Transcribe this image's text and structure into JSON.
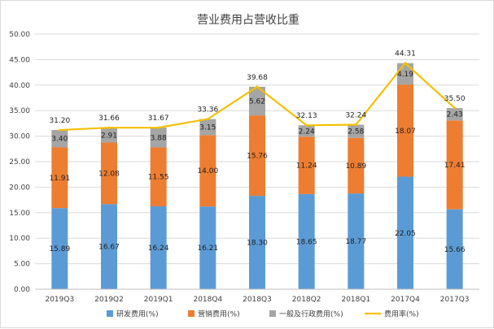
{
  "chart_data": {
    "type": "bar",
    "stacked": true,
    "title": "营业费用占营收比重",
    "categories": [
      "2019Q3",
      "2019Q2",
      "2019Q1",
      "2018Q4",
      "2018Q3",
      "2018Q2",
      "2018Q1",
      "2017Q4",
      "2017Q3"
    ],
    "series": [
      {
        "name": "研发费用(%)",
        "type": "bar",
        "color": "#5b9bd5",
        "values": [
          15.89,
          16.67,
          16.24,
          16.21,
          18.3,
          18.65,
          18.77,
          22.05,
          15.66
        ],
        "labels": [
          "15.89",
          "16.67",
          "16.24",
          "16.21",
          "18.30",
          "18.65",
          "18.77",
          "22.05",
          "15.66"
        ]
      },
      {
        "name": "营销费用(%)",
        "type": "bar",
        "color": "#ed7d31",
        "values": [
          11.91,
          12.08,
          11.55,
          14.0,
          15.76,
          11.24,
          10.89,
          18.07,
          17.41
        ],
        "labels": [
          "11.91",
          "12.08",
          "11.55",
          "14.00",
          "15.76",
          "11.24",
          "10.89",
          "18.07",
          "17.41"
        ]
      },
      {
        "name": "一般及行政费用(%)",
        "type": "bar",
        "color": "#a5a5a5",
        "values": [
          3.4,
          2.91,
          3.88,
          3.15,
          5.62,
          2.24,
          2.58,
          4.19,
          2.43
        ],
        "labels": [
          "3.40",
          "2.91",
          "3.88",
          "3.15",
          "5.62",
          "2.24",
          "2.58",
          "4.19",
          "2.43"
        ]
      },
      {
        "name": "费用率(%)",
        "type": "line",
        "color": "#f5c000",
        "values": [
          31.2,
          31.66,
          31.67,
          33.36,
          39.68,
          32.13,
          32.24,
          44.31,
          35.5
        ],
        "labels": [
          "31.20",
          "31.66",
          "31.67",
          "33.36",
          "39.68",
          "32.13",
          "32.24",
          "44.31",
          "35.50"
        ]
      }
    ],
    "ylim": [
      0,
      50
    ],
    "yticks": [
      "0.00",
      "5.00",
      "10.00",
      "15.00",
      "20.00",
      "25.00",
      "30.00",
      "35.00",
      "40.00",
      "45.00",
      "50.00"
    ],
    "grid": true,
    "legend": "bottom",
    "xlabel": "",
    "ylabel": ""
  }
}
